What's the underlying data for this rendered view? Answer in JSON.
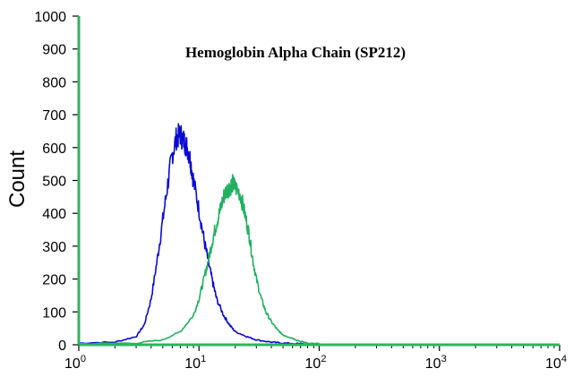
{
  "chart_data": {
    "type": "line",
    "title": "Hemoglobin Alpha Chain (SP212)",
    "xlabel": "",
    "ylabel": "Count",
    "x_scale": "log",
    "xlim": [
      1,
      10000
    ],
    "ylim": [
      0,
      1000
    ],
    "x_ticks": [
      {
        "value": 1,
        "base": "10",
        "exp": "0"
      },
      {
        "value": 10,
        "base": "10",
        "exp": "1"
      },
      {
        "value": 100,
        "base": "10",
        "exp": "2"
      },
      {
        "value": 1000,
        "base": "10",
        "exp": "3"
      },
      {
        "value": 10000,
        "base": "10",
        "exp": "4"
      }
    ],
    "y_ticks": [
      0,
      100,
      200,
      300,
      400,
      500,
      600,
      700,
      800,
      900,
      1000
    ],
    "grid": false,
    "legend": "none",
    "axis_color": "#2db55d",
    "series": [
      {
        "color": "#0a0ad2",
        "x": [
          1,
          2,
          3,
          3.5,
          4,
          4.5,
          5,
          5.5,
          6,
          6.5,
          7,
          7.5,
          8,
          8.5,
          9,
          10,
          11,
          12,
          13,
          14,
          16,
          18,
          20,
          25,
          30,
          40,
          50,
          70,
          100
        ],
        "y": [
          5,
          8,
          25,
          60,
          140,
          260,
          380,
          490,
          580,
          630,
          640,
          620,
          600,
          560,
          500,
          410,
          320,
          250,
          190,
          140,
          90,
          60,
          40,
          25,
          15,
          8,
          5,
          3,
          2
        ]
      },
      {
        "color": "#20b060",
        "x": [
          1,
          3,
          5,
          7,
          9,
          10,
          11,
          12,
          13,
          14,
          15,
          16,
          17,
          18,
          19,
          20,
          22,
          24,
          26,
          28,
          30,
          33,
          36,
          40,
          45,
          50,
          60,
          70,
          80,
          100
        ],
        "y": [
          3,
          5,
          15,
          40,
          90,
          140,
          200,
          260,
          320,
          370,
          410,
          450,
          470,
          480,
          490,
          480,
          460,
          400,
          340,
          260,
          200,
          140,
          100,
          70,
          45,
          30,
          20,
          10,
          5,
          3
        ]
      }
    ]
  }
}
